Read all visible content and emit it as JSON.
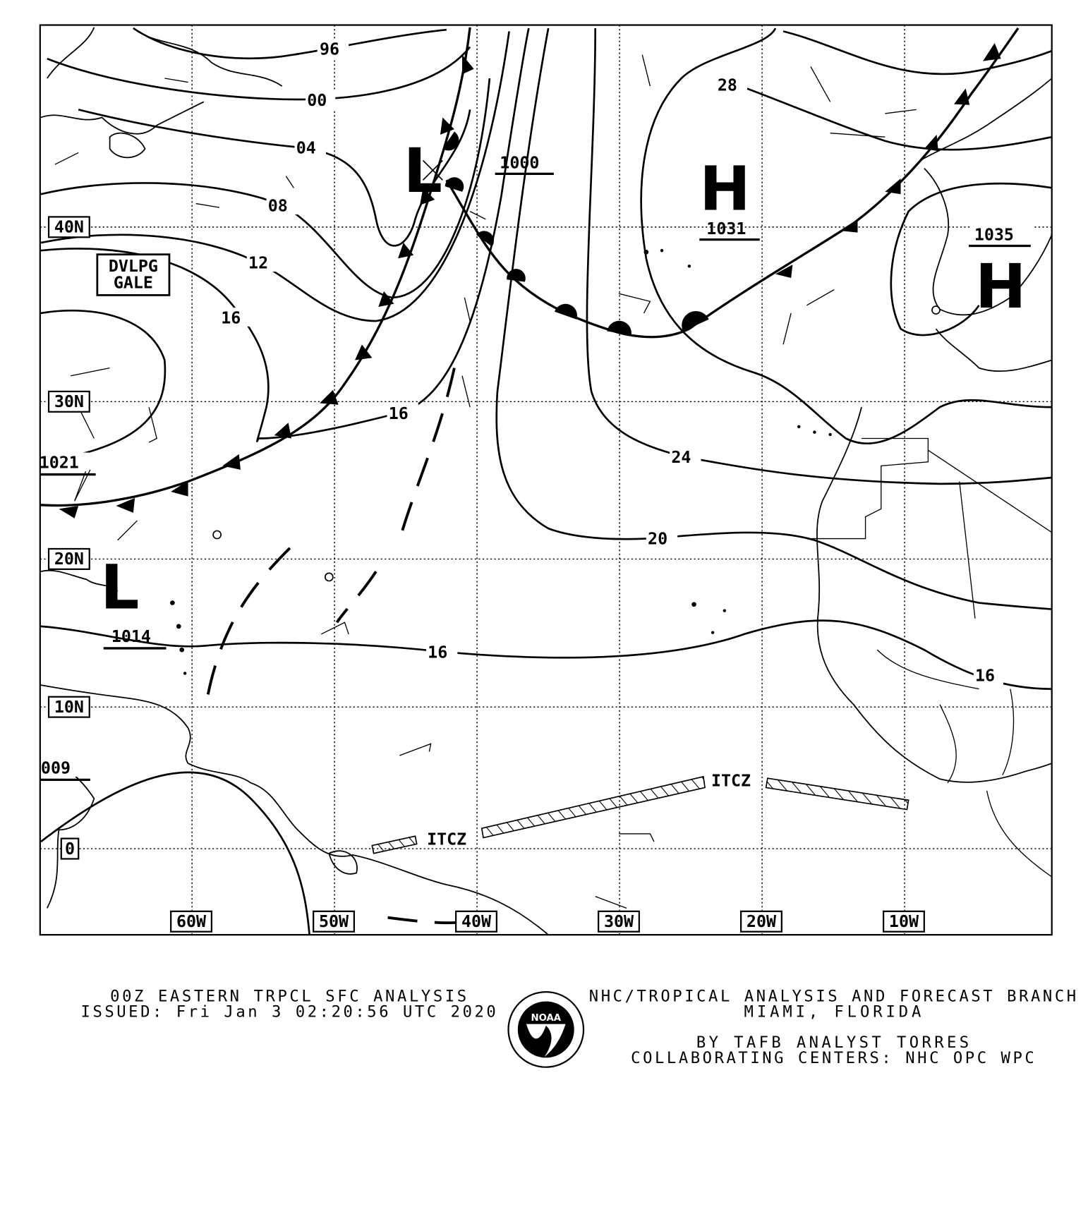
{
  "footer": {
    "title": "00Z EASTERN TRPCL SFC ANALYSIS",
    "issued": "ISSUED: Fri Jan 3 02:20:56 UTC 2020",
    "branch": "NHC/TROPICAL ANALYSIS AND FORECAST BRANCH",
    "location": "MIAMI,  FLORIDA",
    "analyst": "BY TAFB ANALYST  TORRES",
    "centers": "COLLABORATING CENTERS: NHC OPC WPC",
    "logo_text": "NOAA"
  },
  "grid": {
    "latitudes": [
      "40N",
      "30N",
      "20N",
      "10N",
      "0"
    ],
    "longitudes": [
      "60W",
      "50W",
      "40W",
      "30W",
      "20W",
      "10W"
    ]
  },
  "isobar_labels": [
    "96",
    "00",
    "04",
    "08",
    "12",
    "16",
    "16",
    "16",
    "16",
    "20",
    "24",
    "28",
    "1000"
  ],
  "pressure_centers": [
    {
      "type": "L",
      "value": ""
    },
    {
      "type": "H",
      "value": "1031"
    },
    {
      "type": "H",
      "value": "1035"
    },
    {
      "type": "L",
      "value": "1014"
    },
    {
      "type": "",
      "value": "1021"
    },
    {
      "type": "",
      "value": "009"
    }
  ],
  "annotations": {
    "gale": [
      "DVLPG",
      "GALE"
    ],
    "itcz": [
      "ITCZ",
      "ITCZ"
    ]
  },
  "colors": {
    "ink": "#000000",
    "background": "#ffffff"
  }
}
